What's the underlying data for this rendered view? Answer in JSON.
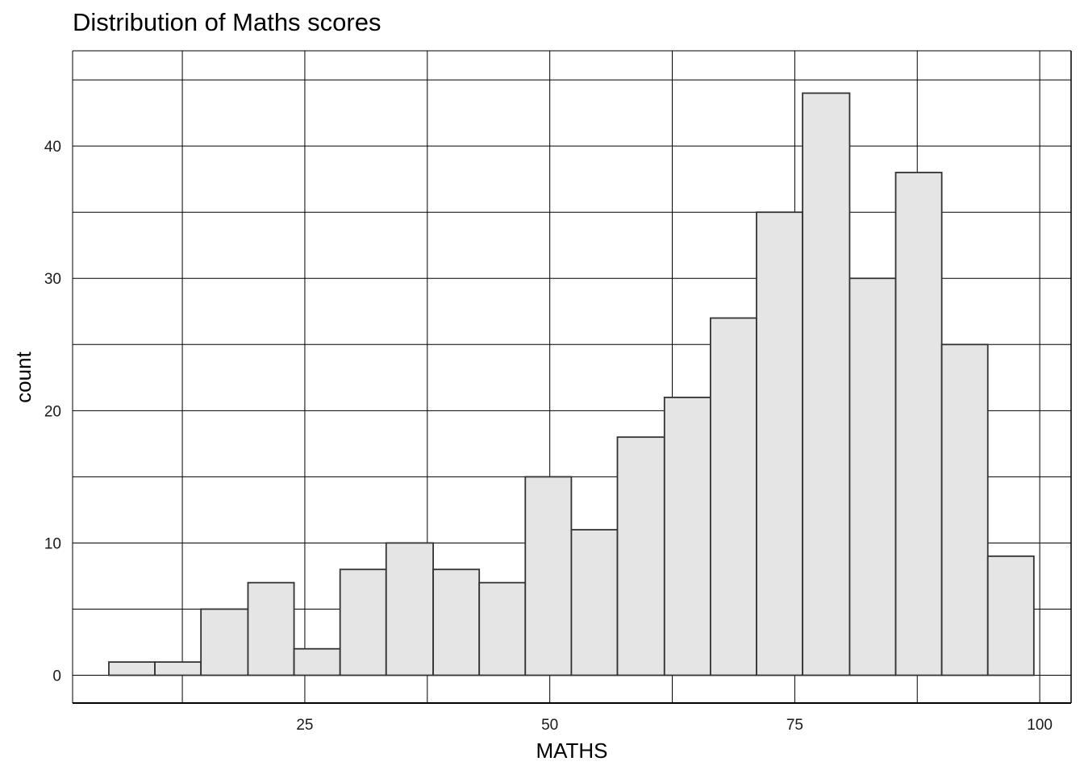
{
  "chart_data": {
    "type": "bar",
    "title": "Distribution of Maths scores",
    "xlabel": "MATHS",
    "ylabel": "count",
    "xlim": [
      1.3,
      103.2
    ],
    "ylim": [
      -2.1,
      47.2
    ],
    "x_ticks": [
      25,
      50,
      75,
      100
    ],
    "y_ticks": [
      0,
      10,
      20,
      30,
      40
    ],
    "grid": true,
    "bins": [
      {
        "x0": 5.0,
        "x1": 9.7,
        "count": 1
      },
      {
        "x0": 9.7,
        "x1": 14.4,
        "count": 1
      },
      {
        "x0": 14.4,
        "x1": 19.2,
        "count": 5
      },
      {
        "x0": 19.2,
        "x1": 23.9,
        "count": 7
      },
      {
        "x0": 23.9,
        "x1": 28.6,
        "count": 2
      },
      {
        "x0": 28.6,
        "x1": 33.3,
        "count": 8
      },
      {
        "x0": 33.3,
        "x1": 38.1,
        "count": 10
      },
      {
        "x0": 38.1,
        "x1": 42.8,
        "count": 8
      },
      {
        "x0": 42.8,
        "x1": 47.5,
        "count": 7
      },
      {
        "x0": 47.5,
        "x1": 52.2,
        "count": 15
      },
      {
        "x0": 52.2,
        "x1": 56.9,
        "count": 11
      },
      {
        "x0": 56.9,
        "x1": 61.7,
        "count": 18
      },
      {
        "x0": 61.7,
        "x1": 66.4,
        "count": 21
      },
      {
        "x0": 66.4,
        "x1": 71.1,
        "count": 27
      },
      {
        "x0": 71.1,
        "x1": 75.8,
        "count": 35
      },
      {
        "x0": 75.8,
        "x1": 80.6,
        "count": 44
      },
      {
        "x0": 80.6,
        "x1": 85.3,
        "count": 30
      },
      {
        "x0": 85.3,
        "x1": 90.0,
        "count": 38
      },
      {
        "x0": 90.0,
        "x1": 94.7,
        "count": 25
      },
      {
        "x0": 94.7,
        "x1": 99.4,
        "count": 9
      }
    ],
    "bar_fill": "#e5e5e5",
    "bar_stroke": "#333333",
    "grid_color": "#000000"
  }
}
